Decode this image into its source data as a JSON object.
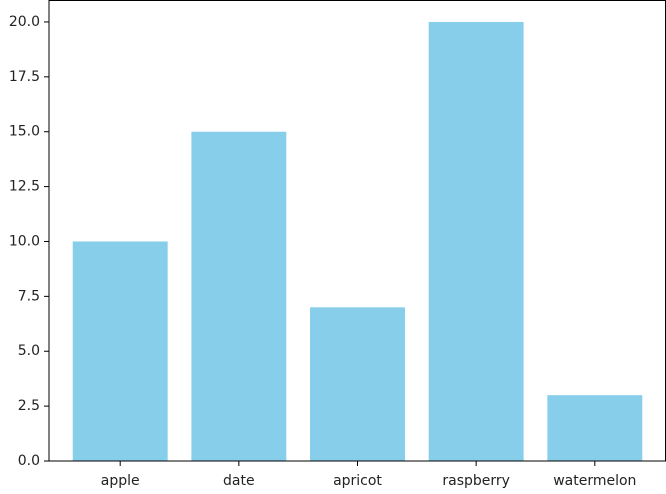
{
  "chart_data": {
    "type": "bar",
    "categories": [
      "apple",
      "date",
      "apricot",
      "raspberry",
      "watermelon"
    ],
    "values": [
      10,
      15,
      7,
      20,
      3
    ],
    "color": "#87ceeb",
    "ylim": [
      0,
      21
    ],
    "yticks": [
      {
        "value": 0,
        "label": "0.0"
      },
      2.5,
      {
        "value": 5,
        "label": "5.0"
      },
      7.5,
      {
        "value": 10,
        "label": "10.0"
      },
      12.5,
      {
        "value": 15,
        "label": "15.0"
      },
      17.5,
      {
        "value": 20,
        "label": "20.0"
      }
    ],
    "grid": false
  }
}
